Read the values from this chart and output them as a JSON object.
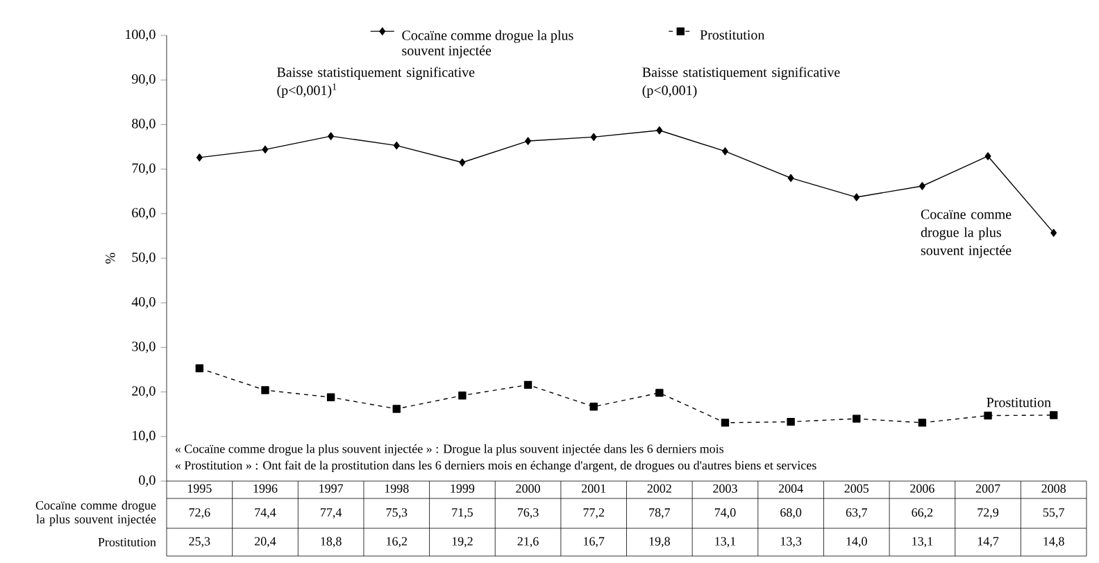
{
  "chart_data": {
    "type": "line",
    "ylabel": "%",
    "categories": [
      "1995",
      "1996",
      "1997",
      "1998",
      "1999",
      "2000",
      "2001",
      "2002",
      "2003",
      "2004",
      "2005",
      "2006",
      "2007",
      "2008"
    ],
    "series": [
      {
        "name": "Cocaïne comme drogue la plus souvent injectée",
        "color": "#000000",
        "marker": "diamond",
        "line_style": "solid",
        "values": [
          72.6,
          74.4,
          77.4,
          75.3,
          71.5,
          76.3,
          77.2,
          78.7,
          74.0,
          68.0,
          63.7,
          66.2,
          72.9,
          55.7
        ],
        "value_labels": [
          "72,6",
          "74,4",
          "77,4",
          "75,3",
          "71,5",
          "76,3",
          "77,2",
          "78,7",
          "74,0",
          "68,0",
          "63,7",
          "66,2",
          "72,9",
          "55,7"
        ]
      },
      {
        "name": "Prostitution",
        "color": "#000000",
        "marker": "square",
        "line_style": "dashed",
        "values": [
          25.3,
          20.4,
          18.8,
          16.2,
          19.2,
          21.6,
          16.7,
          19.8,
          13.1,
          13.3,
          14.0,
          13.1,
          14.7,
          14.8
        ],
        "value_labels": [
          "25,3",
          "20,4",
          "18,8",
          "16,2",
          "19,2",
          "21,6",
          "16,7",
          "19,8",
          "13,1",
          "13,3",
          "14,0",
          "13,1",
          "14,7",
          "14,8"
        ]
      }
    ],
    "ylim": [
      0,
      100
    ],
    "yticks": [
      {
        "value": 0,
        "label": "0,0"
      },
      {
        "value": 10,
        "label": "10,0"
      },
      {
        "value": 20,
        "label": "20,0"
      },
      {
        "value": 30,
        "label": "30,0"
      },
      {
        "value": 40,
        "label": "40,0"
      },
      {
        "value": 50,
        "label": "50,0"
      },
      {
        "value": 60,
        "label": "60,0"
      },
      {
        "value": 70,
        "label": "70,0"
      },
      {
        "value": 80,
        "label": "80,0"
      },
      {
        "value": 90,
        "label": "90,0"
      },
      {
        "value": 100,
        "label": "100,0"
      }
    ],
    "annotations": [
      "Baisse statistiquement significative (p<0,001)$^{1}$",
      "Baisse statistiquement significative (p<0,001)",
      "Cocaïne comme drogue la plus souvent injectée",
      "Prostitution",
      "Cocaïne comme drogue la plus souvent injectée",
      "Prostitution",
      "« Cocaïne comme drogue la plus souvent injectée » : Drogue la plus souvent injectée dans les 6 derniers mois",
      "« Prostitution » : Ont fait de la prostitution dans les 6 derniers mois en échange d'argent, de drogues ou d'autres biens et services"
    ],
    "grid": false,
    "legend": "top"
  }
}
